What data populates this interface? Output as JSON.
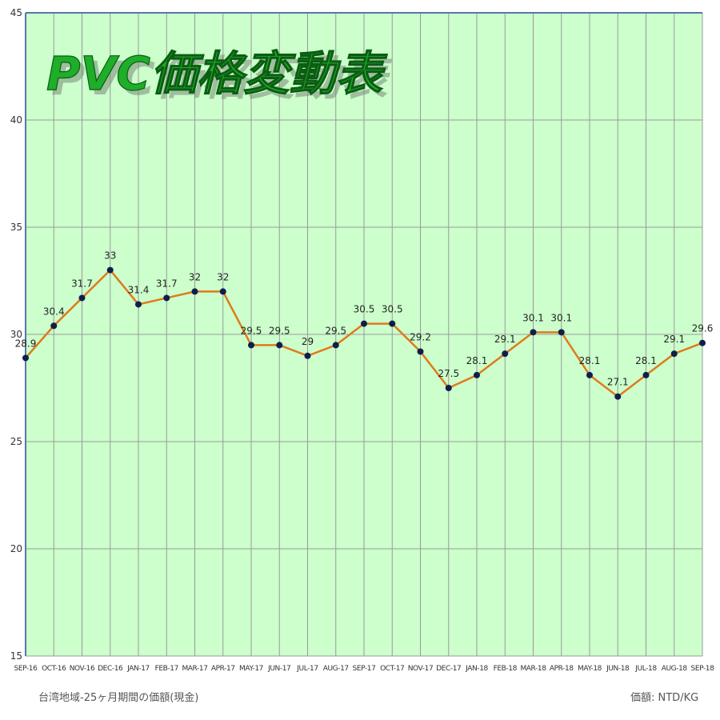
{
  "chart_data": {
    "type": "line",
    "title": "PVC価格変動表",
    "categories": [
      "SEP-16",
      "OCT-16",
      "NOV-16",
      "DEC-16",
      "JAN-17",
      "FEB-17",
      "MAR-17",
      "APR-17",
      "MAY-17",
      "JUN-17",
      "JUL-17",
      "AUG-17",
      "SEP-17",
      "OCT-17",
      "NOV-17",
      "DEC-17",
      "JAN-18",
      "FEB-18",
      "MAR-18",
      "APR-18",
      "MAY-18",
      "JUN-18",
      "JUL-18",
      "AUG-18",
      "SEP-18"
    ],
    "series": [
      {
        "values": [
          28.9,
          30.4,
          31.7,
          33,
          31.4,
          31.7,
          32,
          32,
          29.5,
          29.5,
          29,
          29.5,
          30.5,
          30.5,
          29.2,
          27.5,
          28.1,
          29.1,
          30.1,
          30.1,
          28.1,
          27.1,
          28.1,
          29.1,
          29.6
        ]
      }
    ],
    "data_labels": [
      "28.9",
      "30.4",
      "31.7",
      "33",
      "31.4",
      "31.7",
      "32",
      "32",
      "29.5",
      "29.5",
      "29",
      "29.5",
      "30.5",
      "30.5",
      "29.2",
      "27.5",
      "28.1",
      "29.1",
      "30.1",
      "30.1",
      "28.1",
      "27.1",
      "28.1",
      "29.1",
      "29.6"
    ],
    "ylim": [
      15,
      45
    ],
    "yticks": [
      15,
      20,
      25,
      30,
      35,
      40,
      45
    ],
    "grid": true,
    "xlabel": "",
    "ylabel": "",
    "footer_left": "台湾地域-25ヶ月期間の価額(現金)",
    "footer_right": "価額: NTD/KG",
    "colors": {
      "plot_background": "#ccffcc",
      "line": "#e07a1c",
      "marker": "#0d1f4a",
      "title": "#1fae2a"
    }
  }
}
